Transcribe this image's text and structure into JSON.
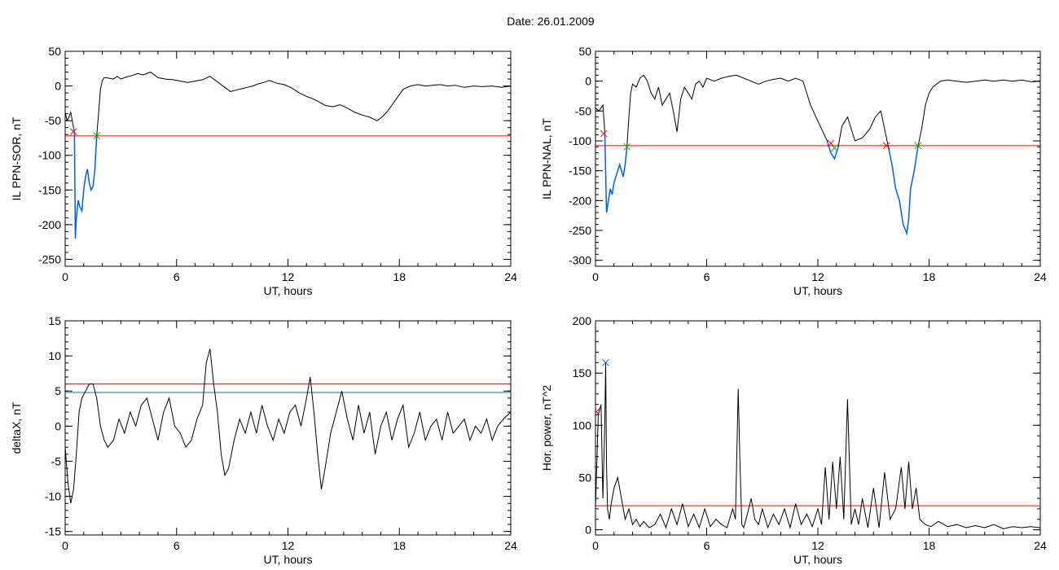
{
  "figure": {
    "title": "Date:  26.01.2009"
  },
  "chart_data": [
    {
      "type": "line",
      "xlabel": "UT, hours",
      "ylabel": "IL PPN-SOR, nT",
      "xlim": [
        0,
        24
      ],
      "ylim": [
        -260,
        50
      ],
      "xticks": [
        0,
        6,
        12,
        18,
        24
      ],
      "yticks": [
        -250,
        -200,
        -150,
        -100,
        -50,
        0,
        50
      ],
      "grid": false,
      "series": [
        {
          "color": "#000000",
          "x": [
            0.0,
            0.1,
            0.2,
            0.3,
            0.45,
            0.5,
            0.55,
            0.6,
            0.7,
            0.8,
            0.9,
            1.0,
            1.1,
            1.2,
            1.3,
            1.4,
            1.5,
            1.6,
            1.7,
            1.8,
            1.9,
            2.0,
            2.1,
            2.2,
            2.4,
            2.6,
            2.8,
            3.0,
            3.3,
            3.6,
            3.9,
            4.2,
            4.6,
            5.0,
            5.4,
            5.8,
            6.2,
            6.6,
            7.0,
            7.4,
            7.8,
            8.0,
            8.3,
            8.6,
            8.9,
            9.2,
            9.5,
            9.8,
            10.1,
            10.4,
            10.7,
            11.0,
            11.4,
            11.8,
            12.2,
            12.6,
            13.0,
            13.3,
            13.6,
            14.0,
            14.4,
            14.8,
            15.2,
            15.6,
            16.0,
            16.4,
            16.8,
            17.1,
            17.4,
            17.8,
            18.2,
            18.6,
            19.0,
            19.4,
            19.8,
            20.2,
            20.6,
            21.0,
            21.5,
            22.0,
            22.5,
            23.0,
            23.5,
            24.0
          ],
          "y": [
            -38,
            -50,
            -45,
            -38,
            -60,
            -70,
            -220,
            -190,
            -165,
            -175,
            -180,
            -150,
            -130,
            -120,
            -140,
            -150,
            -145,
            -120,
            -72,
            -40,
            -5,
            8,
            12,
            12,
            11,
            10,
            14,
            10,
            13,
            15,
            18,
            16,
            20,
            12,
            10,
            9,
            7,
            5,
            7,
            9,
            14,
            10,
            4,
            -2,
            -8,
            -6,
            -4,
            -2,
            0,
            3,
            5,
            8,
            4,
            2,
            -3,
            -10,
            -15,
            -18,
            -22,
            -28,
            -30,
            -27,
            -32,
            -38,
            -42,
            -45,
            -50,
            -44,
            -35,
            -20,
            -5,
            0,
            2,
            0,
            1,
            2,
            0,
            1,
            -2,
            0,
            -1,
            0,
            -2,
            0
          ]
        },
        {
          "color": "#0060ff",
          "x": [
            0.45,
            0.5,
            0.55,
            0.6,
            0.7,
            0.8,
            0.9,
            1.0,
            1.1,
            1.2,
            1.3,
            1.4,
            1.5,
            1.6,
            1.7
          ],
          "y": [
            -60,
            -70,
            -220,
            -190,
            -165,
            -175,
            -180,
            -150,
            -130,
            -120,
            -140,
            -150,
            -145,
            -120,
            -72
          ]
        }
      ],
      "hlines": [
        {
          "y": -72,
          "color": "#ff0000"
        }
      ],
      "markers": [
        {
          "x": 0.45,
          "y": -66,
          "symbol": "x",
          "color": "#ff0000"
        },
        {
          "x": 1.7,
          "y": -72,
          "symbol": "x",
          "color": "#00c000"
        }
      ]
    },
    {
      "type": "line",
      "xlabel": "UT, hours",
      "ylabel": "IL PPN-NAL, nT",
      "xlim": [
        0,
        24
      ],
      "ylim": [
        -310,
        50
      ],
      "xticks": [
        0,
        6,
        12,
        18,
        24
      ],
      "yticks": [
        -300,
        -250,
        -200,
        -150,
        -100,
        -50,
        0,
        50
      ],
      "grid": false,
      "series": [
        {
          "color": "#000000",
          "x": [
            0.0,
            0.2,
            0.4,
            0.5,
            0.6,
            0.7,
            0.8,
            0.9,
            1.0,
            1.1,
            1.2,
            1.3,
            1.4,
            1.5,
            1.6,
            1.7,
            1.8,
            1.9,
            2.0,
            2.2,
            2.4,
            2.6,
            2.8,
            3.0,
            3.2,
            3.4,
            3.6,
            3.8,
            4.0,
            4.2,
            4.4,
            4.6,
            4.8,
            5.0,
            5.2,
            5.4,
            5.6,
            5.8,
            6.0,
            6.4,
            6.8,
            7.2,
            7.6,
            8.0,
            8.4,
            8.8,
            9.2,
            9.6,
            10.0,
            10.4,
            10.8,
            11.2,
            11.6,
            11.9,
            12.2,
            12.5,
            12.7,
            12.9,
            13.1,
            13.3,
            13.6,
            14.0,
            14.4,
            14.8,
            15.1,
            15.4,
            15.6,
            15.8,
            16.0,
            16.2,
            16.4,
            16.6,
            16.8,
            16.9,
            17.0,
            17.2,
            17.4,
            17.6,
            17.8,
            18.0,
            18.2,
            18.4,
            18.6,
            19.0,
            19.5,
            20.0,
            20.5,
            21.0,
            21.5,
            22.0,
            22.5,
            23.0,
            23.5,
            24.0
          ],
          "y": [
            -45,
            -50,
            -40,
            -85,
            -220,
            -200,
            -180,
            -190,
            -170,
            -160,
            -150,
            -140,
            -150,
            -160,
            -140,
            -110,
            -60,
            -20,
            -5,
            -10,
            5,
            10,
            0,
            -20,
            -30,
            -10,
            -40,
            -30,
            -20,
            -50,
            -85,
            -30,
            -10,
            -20,
            -30,
            -5,
            0,
            -10,
            5,
            0,
            5,
            8,
            10,
            5,
            0,
            -5,
            0,
            3,
            5,
            0,
            5,
            0,
            -40,
            -60,
            -80,
            -100,
            -120,
            -130,
            -110,
            -75,
            -60,
            -100,
            -95,
            -80,
            -60,
            -50,
            -80,
            -110,
            -140,
            -180,
            -200,
            -240,
            -255,
            -230,
            -180,
            -150,
            -110,
            -80,
            -40,
            -20,
            -10,
            -5,
            0,
            2,
            0,
            -2,
            0,
            2,
            0,
            2,
            0,
            2,
            -1,
            0
          ]
        },
        {
          "color": "#0060ff",
          "x": [
            0.5,
            0.6,
            0.7,
            0.8,
            0.9,
            1.0,
            1.1,
            1.2,
            1.3,
            1.4,
            1.5,
            1.6,
            1.7
          ],
          "y": [
            -85,
            -220,
            -200,
            -180,
            -190,
            -170,
            -160,
            -150,
            -140,
            -150,
            -160,
            -140,
            -110
          ]
        },
        {
          "color": "#0060ff",
          "x": [
            12.5,
            12.7,
            12.9,
            13.1
          ],
          "y": [
            -100,
            -120,
            -130,
            -110
          ]
        },
        {
          "color": "#0060ff",
          "x": [
            15.8,
            16.0,
            16.2,
            16.4,
            16.6,
            16.8,
            16.9,
            17.0,
            17.2,
            17.4
          ],
          "y": [
            -110,
            -140,
            -180,
            -200,
            -240,
            -255,
            -230,
            -180,
            -150,
            -110
          ]
        }
      ],
      "hlines": [
        {
          "y": -108,
          "color": "#ff0000"
        }
      ],
      "markers": [
        {
          "x": 0.45,
          "y": -88,
          "symbol": "x",
          "color": "#ff0000"
        },
        {
          "x": 1.7,
          "y": -110,
          "symbol": "x",
          "color": "#00c000"
        },
        {
          "x": 12.7,
          "y": -104,
          "symbol": "x",
          "color": "#ff0000"
        },
        {
          "x": 12.9,
          "y": -112,
          "symbol": "x",
          "color": "#00c000"
        },
        {
          "x": 15.7,
          "y": -108,
          "symbol": "x",
          "color": "#ff0000"
        },
        {
          "x": 17.4,
          "y": -108,
          "symbol": "x",
          "color": "#00c000"
        }
      ]
    },
    {
      "type": "line",
      "xlabel": "UT, hours",
      "ylabel": "deltaX, nT",
      "xlim": [
        0,
        24
      ],
      "ylim": [
        -15.5,
        15
      ],
      "xticks": [
        0,
        6,
        12,
        18,
        24
      ],
      "yticks": [
        -15,
        -10,
        -5,
        0,
        5,
        10,
        15
      ],
      "grid": false,
      "series": [
        {
          "color": "#000000",
          "x": [
            0.0,
            0.15,
            0.3,
            0.45,
            0.6,
            0.75,
            0.9,
            1.1,
            1.3,
            1.5,
            1.7,
            1.9,
            2.1,
            2.3,
            2.6,
            2.9,
            3.2,
            3.5,
            3.8,
            4.1,
            4.4,
            4.7,
            5.0,
            5.3,
            5.6,
            5.9,
            6.2,
            6.5,
            6.8,
            7.1,
            7.4,
            7.6,
            7.8,
            8.0,
            8.2,
            8.4,
            8.6,
            8.8,
            9.1,
            9.4,
            9.7,
            10.0,
            10.3,
            10.6,
            10.9,
            11.2,
            11.5,
            11.8,
            12.1,
            12.4,
            12.7,
            13.0,
            13.2,
            13.4,
            13.6,
            13.8,
            14.0,
            14.3,
            14.6,
            14.9,
            15.2,
            15.5,
            15.8,
            16.1,
            16.4,
            16.7,
            17.0,
            17.3,
            17.6,
            17.9,
            18.2,
            18.5,
            18.8,
            19.1,
            19.4,
            19.7,
            20.0,
            20.3,
            20.6,
            20.9,
            21.2,
            21.5,
            21.8,
            22.1,
            22.4,
            22.7,
            23.0,
            23.3,
            23.6,
            24.0
          ],
          "y": [
            -3,
            -8,
            -11,
            -9,
            -4,
            2,
            4,
            5,
            6,
            6,
            4,
            0,
            -2,
            -3,
            -2,
            1,
            -1,
            2,
            0,
            3,
            4,
            1,
            -2,
            2,
            4,
            0,
            -1,
            -3,
            -2,
            1,
            3,
            9,
            11,
            6,
            2,
            -4,
            -7,
            -6,
            -2,
            1,
            -1,
            2,
            -1,
            3,
            0,
            -2,
            1,
            -1,
            2,
            3,
            0,
            4,
            7,
            2,
            -4,
            -9,
            -6,
            -1,
            2,
            5,
            1,
            -2,
            3,
            -1,
            2,
            -4,
            0,
            2,
            -2,
            1,
            3,
            -3,
            -1,
            2,
            -2,
            0,
            1,
            -2,
            2,
            -1,
            0,
            1,
            -2,
            0,
            -1,
            1,
            -2,
            0,
            1,
            2
          ]
        }
      ],
      "hlines": [
        {
          "y": 6,
          "color": "#ff0000"
        },
        {
          "y": 4.8,
          "color": "#0080a0"
        }
      ],
      "markers": []
    },
    {
      "type": "line",
      "xlabel": "UT, hours",
      "ylabel": "Hor. power, nT^2",
      "xlim": [
        0,
        24
      ],
      "ylim": [
        -5,
        200
      ],
      "xticks": [
        0,
        6,
        12,
        18,
        24
      ],
      "yticks": [
        0,
        50,
        100,
        150,
        200
      ],
      "grid": false,
      "series": [
        {
          "color": "#000000",
          "x": [
            0.0,
            0.15,
            0.3,
            0.4,
            0.5,
            0.55,
            0.6,
            0.65,
            0.75,
            0.85,
            1.0,
            1.2,
            1.4,
            1.6,
            1.8,
            2.0,
            2.2,
            2.4,
            2.6,
            2.9,
            3.2,
            3.5,
            3.8,
            4.1,
            4.4,
            4.7,
            5.0,
            5.3,
            5.6,
            5.9,
            6.2,
            6.5,
            6.8,
            7.1,
            7.4,
            7.55,
            7.7,
            7.8,
            7.9,
            8.0,
            8.2,
            8.4,
            8.6,
            8.8,
            9.0,
            9.3,
            9.6,
            9.9,
            10.2,
            10.5,
            10.8,
            11.1,
            11.4,
            11.7,
            12.0,
            12.2,
            12.4,
            12.6,
            12.8,
            13.0,
            13.2,
            13.4,
            13.6,
            13.8,
            14.0,
            14.2,
            14.4,
            14.7,
            15.0,
            15.3,
            15.6,
            15.9,
            16.2,
            16.5,
            16.7,
            16.9,
            17.1,
            17.3,
            17.5,
            17.8,
            18.1,
            18.5,
            19.0,
            19.5,
            20.0,
            20.5,
            21.0,
            21.5,
            22.0,
            22.5,
            23.0,
            23.5,
            24.0
          ],
          "y": [
            20,
            110,
            120,
            30,
            100,
            160,
            60,
            20,
            10,
            25,
            40,
            50,
            30,
            10,
            20,
            5,
            10,
            3,
            8,
            2,
            5,
            15,
            2,
            20,
            5,
            25,
            3,
            15,
            2,
            20,
            3,
            10,
            5,
            2,
            20,
            10,
            135,
            60,
            5,
            2,
            15,
            30,
            10,
            5,
            20,
            2,
            15,
            5,
            20,
            2,
            25,
            5,
            15,
            3,
            20,
            5,
            60,
            10,
            65,
            20,
            70,
            10,
            125,
            5,
            20,
            5,
            30,
            2,
            40,
            2,
            55,
            10,
            20,
            60,
            20,
            65,
            20,
            40,
            10,
            5,
            3,
            8,
            3,
            5,
            2,
            4,
            2,
            5,
            1,
            3,
            2,
            3,
            2
          ]
        }
      ],
      "hlines": [
        {
          "y": 23,
          "color": "#ff0000"
        }
      ],
      "markers": [
        {
          "x": 0.05,
          "y": 113,
          "symbol": "x",
          "color": "#ff0000"
        },
        {
          "x": 0.55,
          "y": 160,
          "symbol": "x",
          "color": "#0060ff"
        }
      ]
    }
  ]
}
